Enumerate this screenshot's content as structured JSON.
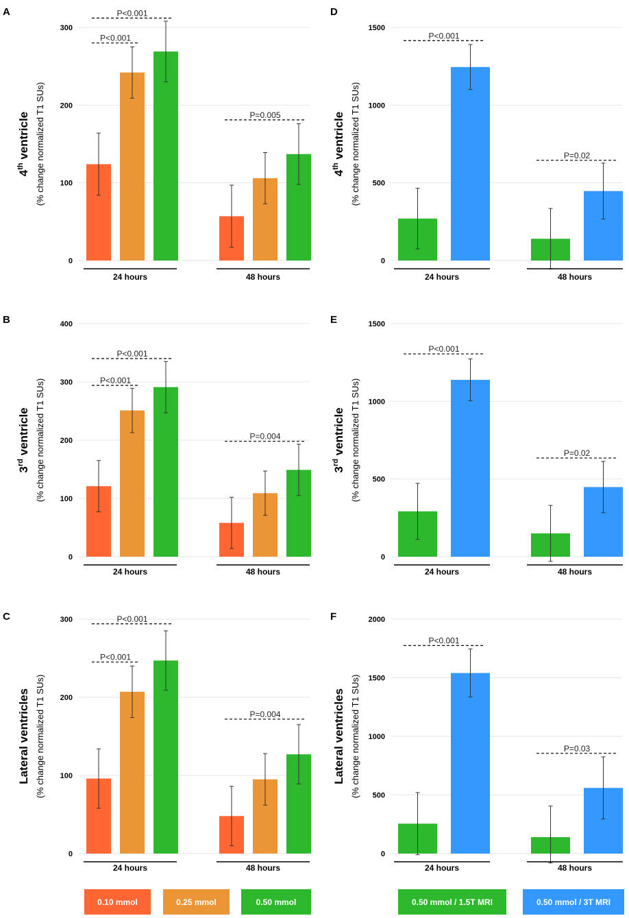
{
  "legend_left": [
    {
      "label": "0.10 mmol",
      "color": "#FF6633"
    },
    {
      "label": "0.25 mmol",
      "color": "#EB9636"
    },
    {
      "label": "0.50 mmol",
      "color": "#2EB82E"
    }
  ],
  "legend_right": [
    {
      "label": "0.50 mmol / 1.5T MRI",
      "color": "#2EB82E"
    },
    {
      "label": "0.50 mmol / 3T MRI",
      "color": "#3399FF"
    }
  ],
  "chart_data": [
    {
      "panel": "A",
      "type": "bar",
      "ylabel_main": "4",
      "ylabel_sup": "th",
      "ylabel_rest": " ventricle",
      "ylabel_sub": "(% change normalized T1 SUs)",
      "ylim": [
        0,
        300
      ],
      "yticks": [
        0,
        100,
        200,
        300
      ],
      "groups": [
        "24 hours",
        "48 hours"
      ],
      "series": [
        {
          "name": "0.10 mmol",
          "values": [
            124,
            57
          ],
          "errors": [
            40,
            40
          ]
        },
        {
          "name": "0.25 mmol",
          "values": [
            242,
            106
          ],
          "errors": [
            33,
            33
          ]
        },
        {
          "name": "0.50 mmol",
          "values": [
            269,
            137
          ],
          "errors": [
            39,
            39
          ]
        }
      ],
      "annotations": [
        {
          "text": "P<0.001",
          "group": 0,
          "from": 0,
          "to": 2,
          "y": 312
        },
        {
          "text": "P<0.001",
          "group": 0,
          "from": 0,
          "to": 1,
          "y": 280
        },
        {
          "text": "P=0.005",
          "group": 1,
          "from": 0,
          "to": 2,
          "y": 181
        }
      ]
    },
    {
      "panel": "B",
      "type": "bar",
      "ylabel_main": "3",
      "ylabel_sup": "rd",
      "ylabel_rest": " ventricle",
      "ylabel_sub": "(% change normalized T1 SUs)",
      "ylim": [
        0,
        400
      ],
      "yticks": [
        0,
        100,
        200,
        300,
        400
      ],
      "groups": [
        "24 hours",
        "48 hours"
      ],
      "series": [
        {
          "name": "0.10 mmol",
          "values": [
            121,
            58
          ],
          "errors": [
            44,
            44
          ]
        },
        {
          "name": "0.25 mmol",
          "values": [
            251,
            109
          ],
          "errors": [
            38,
            38
          ]
        },
        {
          "name": "0.50 mmol",
          "values": [
            291,
            149
          ],
          "errors": [
            44,
            44
          ]
        }
      ],
      "annotations": [
        {
          "text": "P<0.001",
          "group": 0,
          "from": 0,
          "to": 2,
          "y": 340
        },
        {
          "text": "P<0.001",
          "group": 0,
          "from": 0,
          "to": 1,
          "y": 294
        },
        {
          "text": "P=0.004",
          "group": 1,
          "from": 0,
          "to": 2,
          "y": 198
        }
      ]
    },
    {
      "panel": "C",
      "type": "bar",
      "ylabel_main": "Lateral ventricles",
      "ylabel_sup": "",
      "ylabel_rest": "",
      "ylabel_sub": "(% change normalized T1 SUs)",
      "ylim": [
        0,
        300
      ],
      "yticks": [
        0,
        100,
        200,
        300
      ],
      "groups": [
        "24 hours",
        "48 hours"
      ],
      "series": [
        {
          "name": "0.10 mmol",
          "values": [
            96,
            48
          ],
          "errors": [
            38,
            38
          ]
        },
        {
          "name": "0.25 mmol",
          "values": [
            207,
            95
          ],
          "errors": [
            33,
            33
          ]
        },
        {
          "name": "0.50 mmol",
          "values": [
            247,
            127
          ],
          "errors": [
            38,
            38
          ]
        }
      ],
      "annotations": [
        {
          "text": "P<0.001",
          "group": 0,
          "from": 0,
          "to": 2,
          "y": 294
        },
        {
          "text": "P<0.001",
          "group": 0,
          "from": 0,
          "to": 1,
          "y": 245
        },
        {
          "text": "P=0.004",
          "group": 1,
          "from": 0,
          "to": 2,
          "y": 172
        }
      ]
    },
    {
      "panel": "D",
      "type": "bar",
      "ylabel_main": "4",
      "ylabel_sup": "th",
      "ylabel_rest": " ventricle",
      "ylabel_sub": "(% change normalized T1 SUs)",
      "ylim": [
        0,
        1500
      ],
      "yticks": [
        0,
        500,
        1000,
        1500
      ],
      "groups": [
        "24 hours",
        "48 hours"
      ],
      "series": [
        {
          "name": "0.50 mmol / 1.5T MRI",
          "values": [
            270,
            140
          ],
          "errors": [
            195,
            195
          ]
        },
        {
          "name": "0.50 mmol / 3T MRI",
          "values": [
            1245,
            447
          ],
          "errors": [
            145,
            180
          ]
        }
      ],
      "annotations": [
        {
          "text": "P<0.001",
          "group": 0,
          "from": 0,
          "to": 1,
          "y": 1415
        },
        {
          "text": "P=0.02",
          "group": 1,
          "from": 0,
          "to": 1,
          "y": 645
        }
      ]
    },
    {
      "panel": "E",
      "type": "bar",
      "ylabel_main": "3",
      "ylabel_sup": "rd",
      "ylabel_rest": " ventricle",
      "ylabel_sub": "(% change normalized T1 SUs)",
      "ylim": [
        0,
        1500
      ],
      "yticks": [
        0,
        500,
        1000,
        1500
      ],
      "groups": [
        "24 hours",
        "48 hours"
      ],
      "series": [
        {
          "name": "0.50 mmol / 1.5T MRI",
          "values": [
            292,
            150
          ],
          "errors": [
            180,
            180
          ]
        },
        {
          "name": "0.50 mmol / 3T MRI",
          "values": [
            1138,
            448
          ],
          "errors": [
            135,
            165
          ]
        }
      ],
      "annotations": [
        {
          "text": "P<0.001",
          "group": 0,
          "from": 0,
          "to": 1,
          "y": 1305
        },
        {
          "text": "P=0.02",
          "group": 1,
          "from": 0,
          "to": 1,
          "y": 635
        }
      ]
    },
    {
      "panel": "F",
      "type": "bar",
      "ylabel_main": "Lateral ventricles",
      "ylabel_sup": "",
      "ylabel_rest": "",
      "ylabel_sub": "(% change normalized T1 SUs)",
      "ylim": [
        0,
        2000
      ],
      "yticks": [
        0,
        500,
        1000,
        1500,
        2000
      ],
      "groups": [
        "24 hours",
        "48 hours"
      ],
      "series": [
        {
          "name": "0.50 mmol / 1.5T MRI",
          "values": [
            255,
            140
          ],
          "errors": [
            265,
            265
          ]
        },
        {
          "name": "0.50 mmol / 3T MRI",
          "values": [
            1540,
            560
          ],
          "errors": [
            205,
            265
          ]
        }
      ],
      "annotations": [
        {
          "text": "P<0.001",
          "group": 0,
          "from": 0,
          "to": 1,
          "y": 1775
        },
        {
          "text": "P=0.03",
          "group": 1,
          "from": 0,
          "to": 1,
          "y": 855
        }
      ]
    }
  ]
}
